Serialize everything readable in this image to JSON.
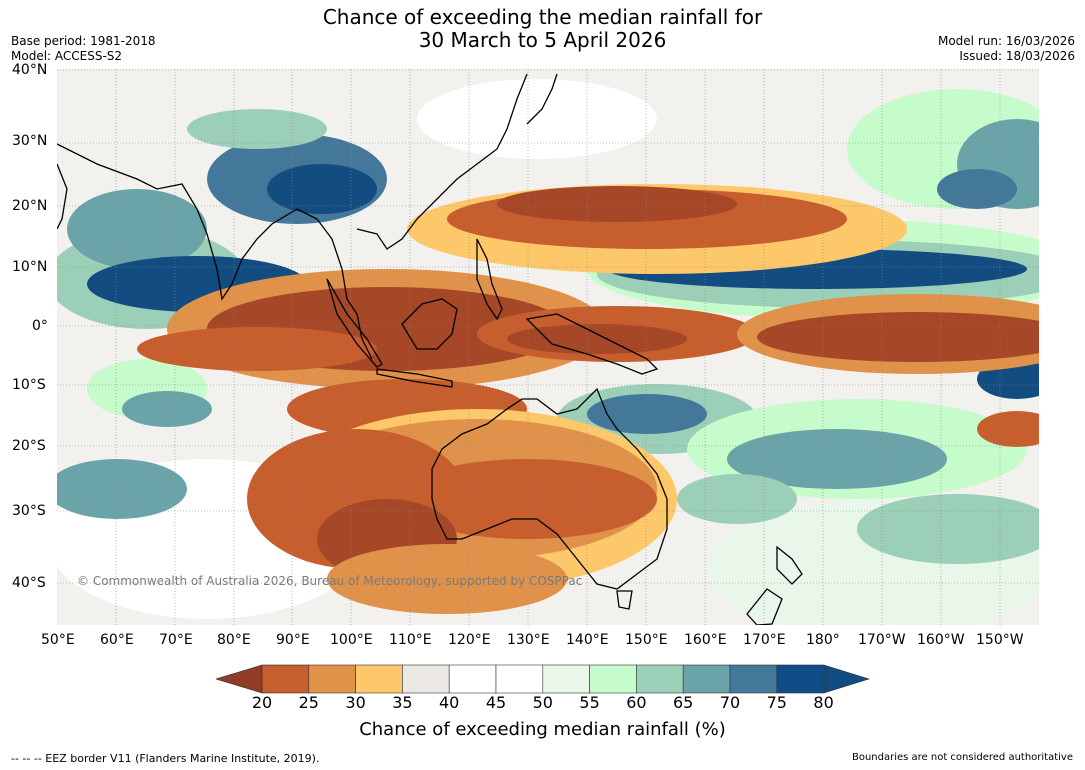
{
  "title": {
    "line1": "Chance of exceeding the median rainfall for",
    "line2": "30 March to 5 April 2026"
  },
  "meta": {
    "base_period": "Base period: 1981-2018",
    "model": "Model: ACCESS-S2",
    "model_run": "Model run: 16/03/2026",
    "issued": "Issued: 18/03/2026"
  },
  "latitude_labels": [
    "40°N",
    "30°N",
    "20°N",
    "10°N",
    "0°",
    "10°S",
    "20°S",
    "30°S",
    "40°S"
  ],
  "longitude_labels": [
    "50°E",
    "60°E",
    "70°E",
    "80°E",
    "90°E",
    "100°E",
    "110°E",
    "120°E",
    "130°E",
    "140°E",
    "150°E",
    "160°E",
    "170°E",
    "180°",
    "170°W",
    "160°W",
    "150°W"
  ],
  "copyright": "© Commonwealth of Australia 2026, Bureau of Meteorology, supported by COSPPac",
  "colorbar": {
    "title": "Chance of exceeding median rainfall (%)",
    "ticks": [
      "20",
      "25",
      "30",
      "35",
      "40",
      "45",
      "50",
      "55",
      "60",
      "65",
      "70",
      "75",
      "80"
    ],
    "colors": [
      "#a64727",
      "#c75e2e",
      "#e0924a",
      "#fdc86a",
      "#ece9e4",
      "#ffffff",
      "#ffffff",
      "#e9f6ea",
      "#c6fbcb",
      "#9ccfb7",
      "#6aa4a8",
      "#44789a",
      "#0f4d86"
    ],
    "under_color": "#913c26",
    "over_color": "#124c80"
  },
  "footer": {
    "eez_note": "--  --  -- EEZ border V11 (Flanders Marine Institute, 2019).",
    "boundaries_note": "Boundaries are not considered authoritative"
  }
}
